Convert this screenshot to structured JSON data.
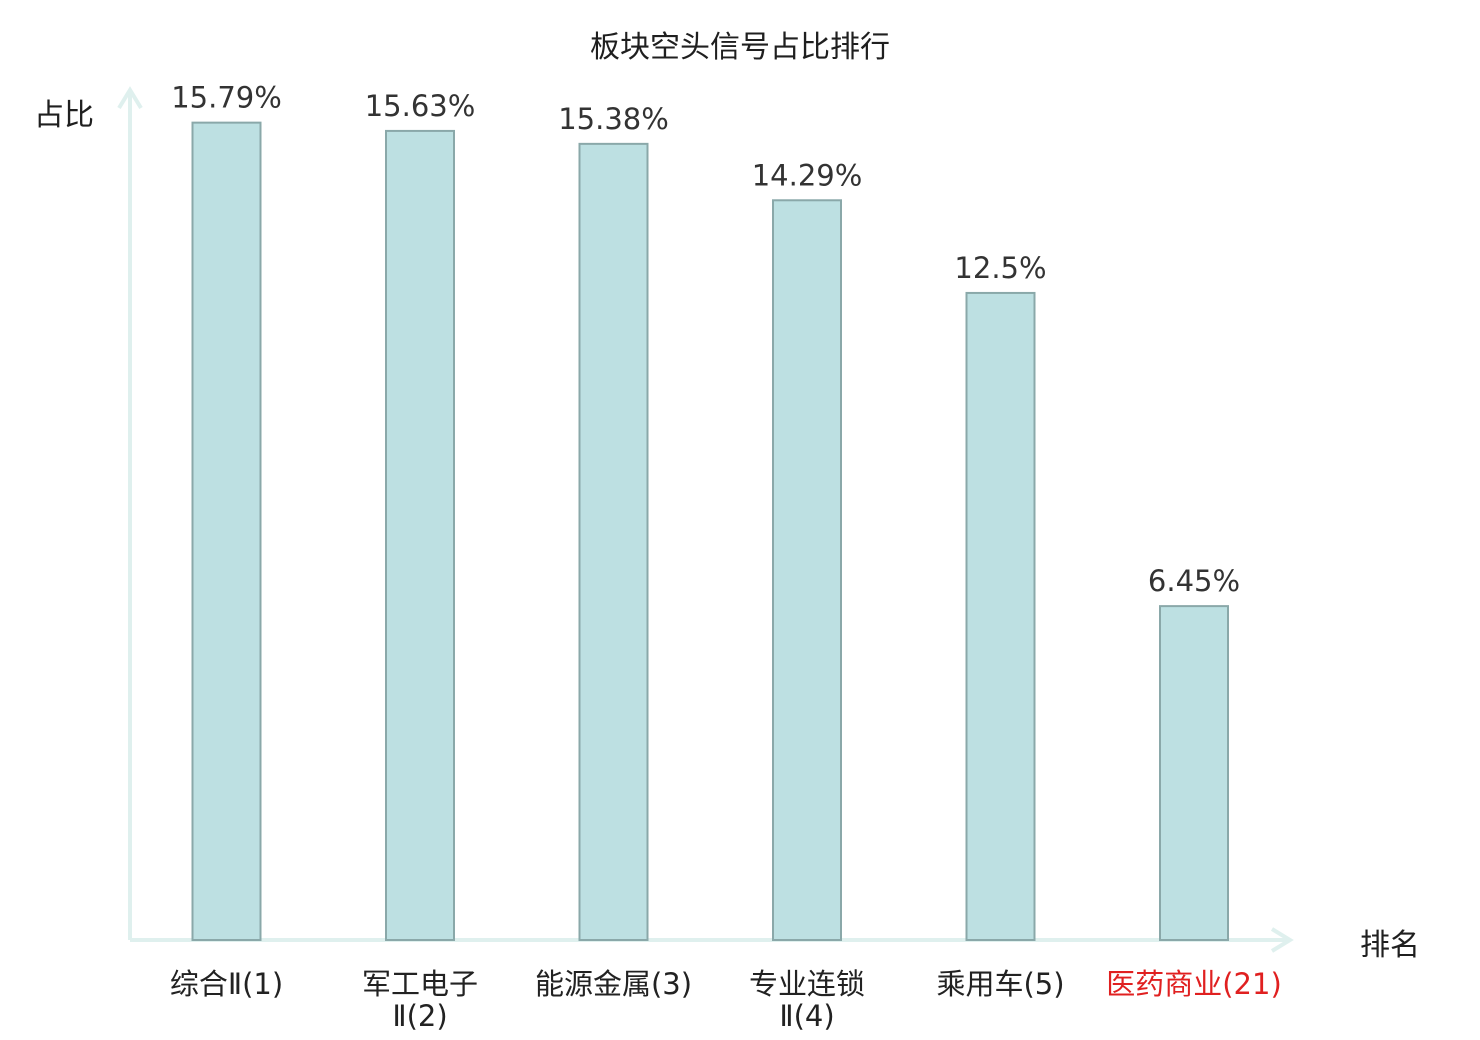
{
  "chart_data": {
    "type": "bar",
    "title": "板块空头信号占比排行",
    "ylabel": "占比",
    "xlabel": "排名",
    "ylim": [
      0,
      17
    ],
    "grid": false,
    "categories": [
      [
        "综合Ⅱ(1)"
      ],
      [
        "军工电子",
        "Ⅱ(2)"
      ],
      [
        "能源金属(3)"
      ],
      [
        "专业连锁",
        "Ⅱ(4)"
      ],
      [
        "乘用车(5)"
      ],
      [
        "医药商业(21)"
      ]
    ],
    "values": [
      15.79,
      15.63,
      15.38,
      14.29,
      12.5,
      6.45
    ],
    "value_labels": [
      "15.79%",
      "15.63%",
      "15.38%",
      "14.29%",
      "12.5%",
      "6.45%"
    ],
    "highlight_index": 5,
    "colors": {
      "bar": "#bde0e2",
      "bar_border": "#8aa8a9",
      "axis": "#dff0ee",
      "highlight_text": "#e02020"
    }
  }
}
